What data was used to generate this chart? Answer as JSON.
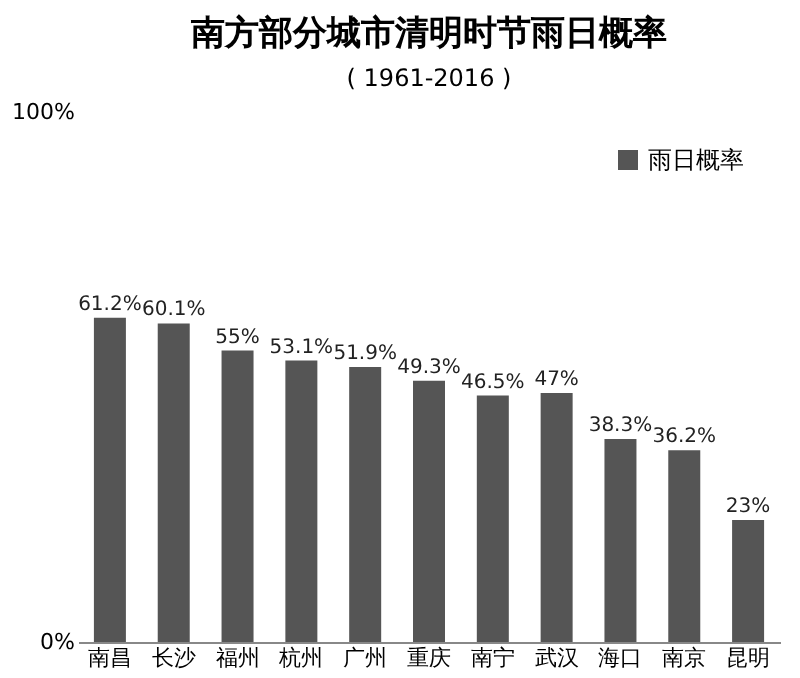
{
  "chart_data": {
    "type": "bar",
    "title": "南方部分城市清明时节雨日概率",
    "subtitle": "( 1961-2016 )",
    "categories": [
      "南昌",
      "长沙",
      "福州",
      "杭州",
      "广州",
      "重庆",
      "南宁",
      "武汉",
      "海口",
      "南京",
      "昆明"
    ],
    "series": [
      {
        "name": "雨日概率",
        "color": "#555555",
        "values": [
          61.2,
          60.1,
          55,
          53.1,
          51.9,
          49.3,
          46.5,
          47,
          38.3,
          36.2,
          23
        ]
      }
    ],
    "value_labels": [
      "61.2%",
      "60.1%",
      "55%",
      "53.1%",
      "51.9%",
      "49.3%",
      "46.5%",
      "47%",
      "38.3%",
      "36.2%",
      "23%"
    ],
    "ylim": [
      0,
      100
    ],
    "yticks": [
      {
        "value": 0,
        "label": "0%"
      },
      {
        "value": 100,
        "label": "100%"
      }
    ],
    "grid": false,
    "legend": "top right"
  }
}
